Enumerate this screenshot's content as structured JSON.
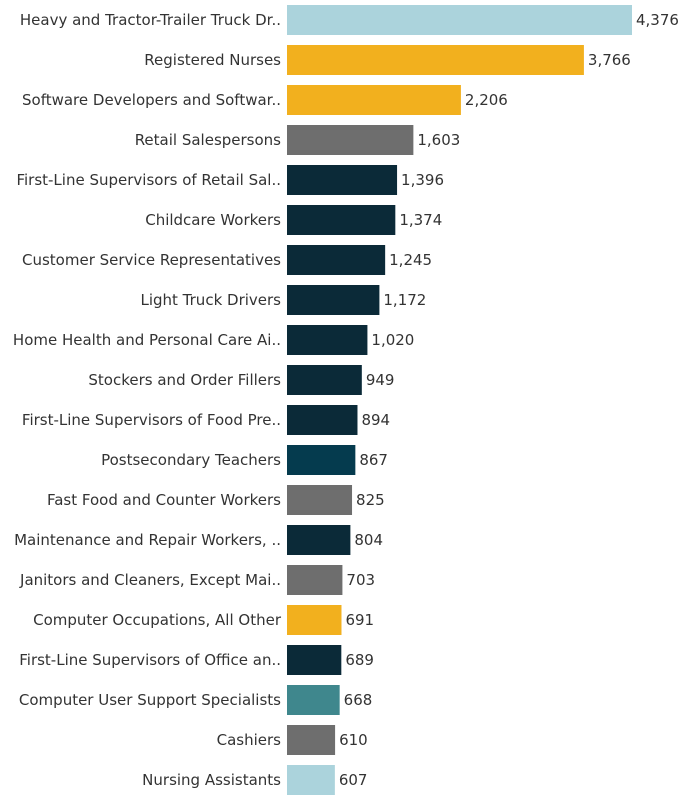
{
  "chart_data": {
    "type": "bar",
    "orientation": "horizontal",
    "title": "",
    "xlabel": "",
    "ylabel": "",
    "xlim": [
      0,
      4376
    ],
    "grid": false,
    "categories": [
      "Heavy and Tractor-Trailer Truck Dr..",
      "Registered Nurses",
      "Software Developers and Softwar..",
      "Retail Salespersons",
      "First-Line Supervisors of Retail Sal..",
      "Childcare Workers",
      "Customer Service Representatives",
      "Light Truck Drivers",
      "Home Health and Personal Care Ai..",
      "Stockers and Order Fillers",
      "First-Line Supervisors of Food Pre..",
      "Postsecondary Teachers",
      "Fast Food and Counter Workers",
      "Maintenance and Repair Workers, ..",
      "Janitors and Cleaners, Except Mai..",
      "Computer Occupations, All Other",
      "First-Line Supervisors of Office an..",
      "Computer User Support Specialists",
      "Cashiers",
      "Nursing Assistants"
    ],
    "values": [
      4376,
      3766,
      2206,
      1603,
      1396,
      1374,
      1245,
      1172,
      1020,
      949,
      894,
      867,
      825,
      804,
      703,
      691,
      689,
      668,
      610,
      607
    ],
    "value_labels": [
      "4,376",
      "3,766",
      "2,206",
      "1,603",
      "1,396",
      "1,374",
      "1,245",
      "1,172",
      "1,020",
      "949",
      "894",
      "867",
      "825",
      "804",
      "703",
      "691",
      "689",
      "668",
      "610",
      "607"
    ],
    "colors": [
      "#abd3dc",
      "#f2b01e",
      "#f2b01e",
      "#6e6e6e",
      "#0b2a38",
      "#0b2a38",
      "#0b2a38",
      "#0b2a38",
      "#0b2a38",
      "#0b2a38",
      "#0b2a38",
      "#053b4e",
      "#6e6e6e",
      "#0b2a38",
      "#6e6e6e",
      "#f2b01e",
      "#0b2a38",
      "#3f878d",
      "#6e6e6e",
      "#abd3dc"
    ]
  }
}
